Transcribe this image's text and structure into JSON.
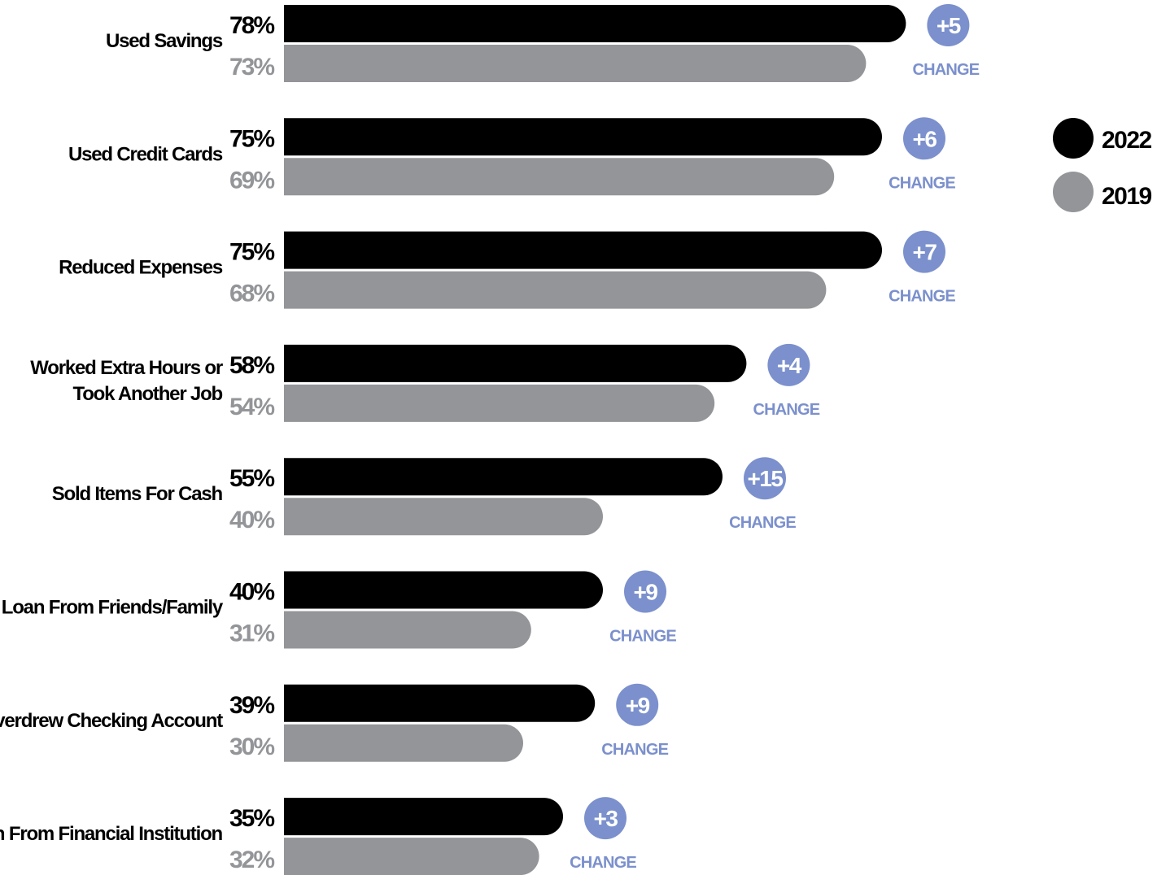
{
  "colors": {
    "series_2022": "#000000",
    "series_2019": "#939598",
    "change_accent": "#7b90cc",
    "category_text": "#000000",
    "background": "#ffffff"
  },
  "legend": {
    "items": [
      {
        "label": "2022",
        "color": "#000000"
      },
      {
        "label": "2019",
        "color": "#939598"
      }
    ]
  },
  "change_word": "CHANGE",
  "chart_data": {
    "type": "bar",
    "orientation": "horizontal",
    "categories": [
      "Used Savings",
      "Used Credit Cards",
      "Reduced Expenses",
      "Worked Extra Hours or Took Another Job",
      "Sold Items For Cash",
      "Loan From Friends/Family",
      "Overdrew Checking Account",
      "Loan From Financial Institution"
    ],
    "category_lines": [
      [
        "Used Savings"
      ],
      [
        "Used Credit Cards"
      ],
      [
        "Reduced Expenses"
      ],
      [
        "Worked Extra Hours or",
        "Took Another Job"
      ],
      [
        "Sold Items For Cash"
      ],
      [
        "Loan From Friends/Family"
      ],
      [
        "Overdrew Checking Account"
      ],
      [
        "Loan From Financial Institution"
      ]
    ],
    "series": [
      {
        "name": "2022",
        "values": [
          78,
          75,
          75,
          58,
          55,
          40,
          39,
          35
        ]
      },
      {
        "name": "2019",
        "values": [
          73,
          69,
          68,
          54,
          40,
          31,
          30,
          32
        ]
      }
    ],
    "value_labels": {
      "2022": [
        "78%",
        "75%",
        "75%",
        "58%",
        "55%",
        "40%",
        "39%",
        "35%"
      ],
      "2019": [
        "73%",
        "69%",
        "68%",
        "54%",
        "40%",
        "31%",
        "30%",
        "32%"
      ]
    },
    "changes": [
      "+5",
      "+6",
      "+7",
      "+4",
      "+15",
      "+9",
      "+9",
      "+3"
    ],
    "unit": "%",
    "legend_position": "right",
    "grid": false
  }
}
